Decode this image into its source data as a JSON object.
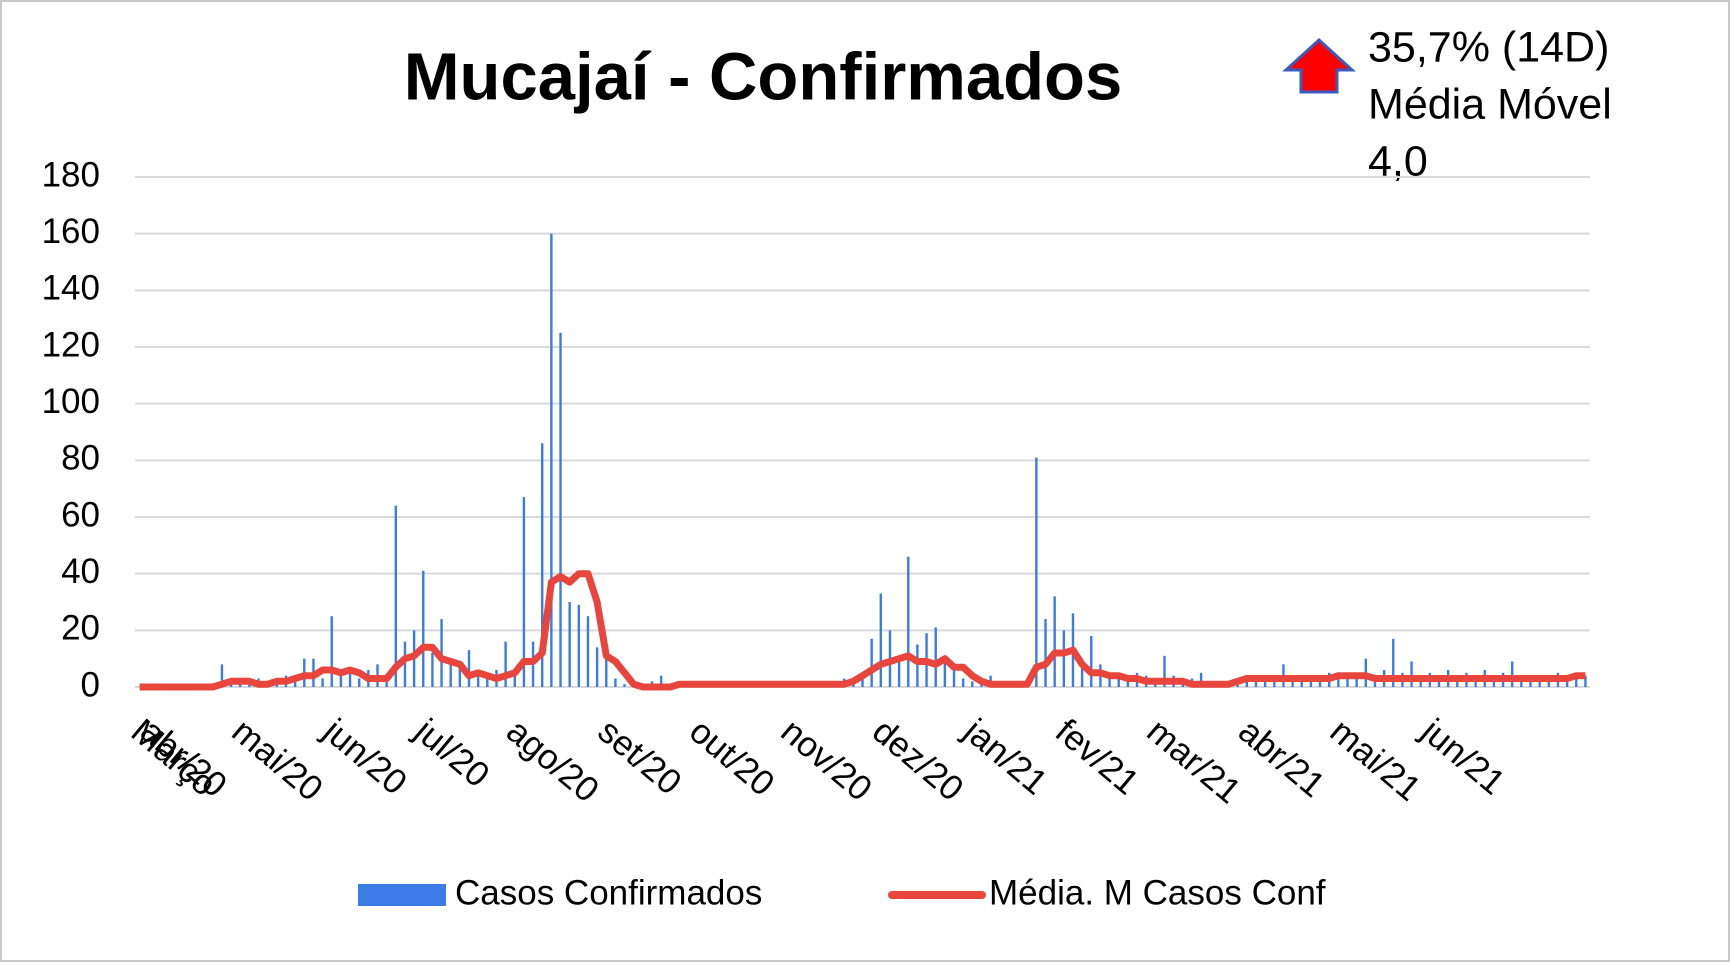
{
  "chart_data": {
    "type": "bar_line",
    "title": "Mucajaí - Confirmados",
    "annotation": {
      "change": "35,7% (14D)",
      "label": "Média Móvel",
      "value": "4,0"
    },
    "categories": [
      "Março",
      "abr/20",
      null,
      null,
      null,
      null,
      null,
      null,
      null,
      null,
      null,
      "mai/20",
      null,
      null,
      null,
      null,
      null,
      null,
      null,
      null,
      null,
      "jun/20",
      null,
      null,
      null,
      null,
      null,
      null,
      null,
      null,
      null,
      "jul/20",
      null,
      null,
      null,
      null,
      null,
      null,
      null,
      null,
      null,
      "ago/20",
      null,
      null,
      null,
      null,
      null,
      null,
      null,
      null,
      null,
      "set/20",
      null,
      null,
      null,
      null,
      null,
      null,
      null,
      null,
      null,
      "out/20",
      null,
      null,
      null,
      null,
      null,
      null,
      null,
      null,
      null,
      "nov/20",
      null,
      null,
      null,
      null,
      null,
      null,
      null,
      null,
      null,
      "dez/20",
      null,
      null,
      null,
      null,
      null,
      null,
      null,
      null,
      null,
      "jan/21",
      null,
      null,
      null,
      null,
      null,
      null,
      null,
      null,
      null,
      "fev/21",
      null,
      null,
      null,
      null,
      null,
      null,
      null,
      null,
      null,
      "mar/21",
      null,
      null,
      null,
      null,
      null,
      null,
      null,
      null,
      null,
      "abr/21",
      null,
      null,
      null,
      null,
      null,
      null,
      null,
      null,
      null,
      "mai/21",
      null,
      null,
      null,
      null,
      null,
      null,
      null,
      null,
      null,
      "jun/21",
      null,
      null,
      null,
      null,
      null,
      null,
      null,
      null,
      null,
      null,
      null,
      null,
      null,
      null,
      null,
      null,
      null
    ],
    "series": [
      {
        "name": "Casos Confirmados",
        "kind": "bar",
        "color": "#3a7be6",
        "values": [
          0,
          0,
          0,
          0,
          0,
          0,
          0,
          0,
          0,
          8,
          2,
          1,
          2,
          3,
          1,
          2,
          4,
          3,
          10,
          10,
          3,
          25,
          4,
          5,
          3,
          6,
          8,
          2,
          64,
          16,
          20,
          41,
          12,
          24,
          10,
          8,
          13,
          5,
          3,
          6,
          16,
          4,
          67,
          16,
          86,
          160,
          125,
          30,
          29,
          25,
          14,
          15,
          3,
          1,
          0,
          1,
          2,
          4,
          1,
          2,
          1,
          2,
          1,
          1,
          2,
          1,
          0,
          1,
          2,
          1,
          1,
          2,
          1,
          1,
          2,
          1,
          2,
          3,
          1,
          5,
          17,
          33,
          20,
          10,
          46,
          15,
          19,
          21,
          10,
          8,
          3,
          2,
          2,
          4,
          2,
          1,
          2,
          1,
          81,
          24,
          32,
          20,
          26,
          10,
          18,
          8,
          5,
          4,
          3,
          5,
          4,
          3,
          11,
          4,
          2,
          3,
          5,
          2,
          1,
          2,
          3,
          4,
          2,
          3,
          4,
          8,
          3,
          4,
          2,
          3,
          5,
          4,
          3,
          5,
          10,
          4,
          6,
          17,
          5,
          9,
          4,
          5,
          3,
          6,
          4,
          5,
          3,
          6,
          4,
          5,
          9,
          4,
          3,
          4,
          3,
          5,
          4,
          3,
          4
        ]
      },
      {
        "name": "Média. M Casos Conf",
        "kind": "line",
        "color": "#e8453c",
        "values": [
          0,
          0,
          0,
          0,
          0,
          0,
          0,
          0,
          0,
          1,
          2,
          2,
          2,
          1,
          1,
          2,
          2,
          3,
          4,
          4,
          6,
          6,
          5,
          6,
          5,
          3,
          3,
          3,
          7,
          10,
          11,
          14,
          14,
          10,
          9,
          8,
          4,
          5,
          4,
          3,
          4,
          5,
          9,
          9,
          12,
          37,
          39,
          37,
          40,
          40,
          30,
          11,
          9,
          5,
          1,
          0,
          0,
          0,
          0,
          1,
          1,
          1,
          1,
          1,
          1,
          1,
          1,
          1,
          1,
          1,
          1,
          1,
          1,
          1,
          1,
          1,
          1,
          1,
          2,
          4,
          6,
          8,
          9,
          10,
          11,
          9,
          9,
          8,
          10,
          7,
          7,
          4,
          2,
          1,
          1,
          1,
          1,
          1,
          7,
          8,
          12,
          12,
          13,
          8,
          5,
          5,
          4,
          4,
          3,
          3,
          2,
          2,
          2,
          2,
          2,
          1,
          1,
          1,
          1,
          1,
          2,
          3,
          3,
          3,
          3,
          3,
          3,
          3,
          3,
          3,
          3,
          4,
          4,
          4,
          4,
          3,
          3,
          3,
          3,
          3,
          3,
          3,
          3,
          3,
          3,
          3,
          3,
          3,
          3,
          3,
          3,
          3,
          3,
          3,
          3,
          3,
          3,
          4,
          4
        ]
      }
    ],
    "ylim": [
      0,
      180
    ],
    "yticks": [
      0,
      20,
      40,
      60,
      80,
      100,
      120,
      140,
      160,
      180
    ],
    "grid": true,
    "legend": "bottom"
  }
}
